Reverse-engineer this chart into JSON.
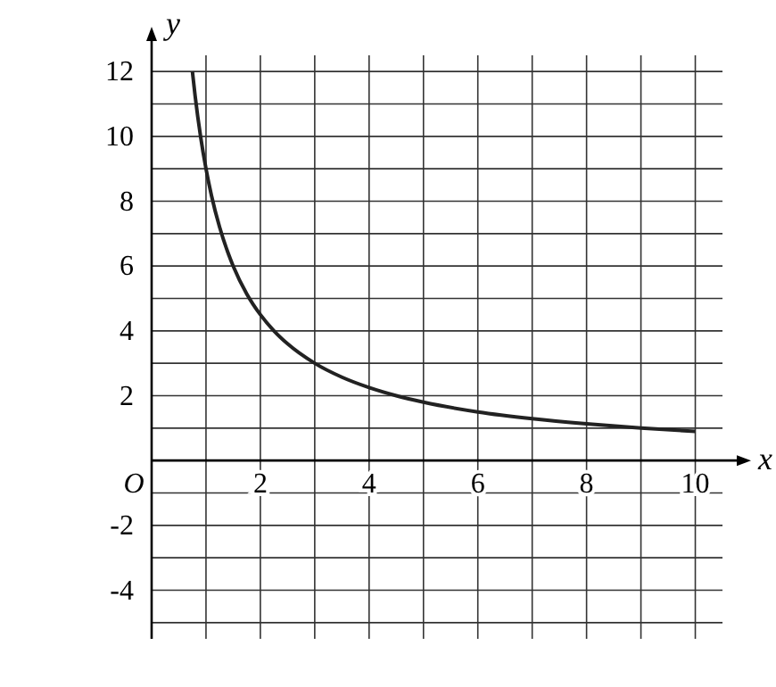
{
  "chart_data": {
    "type": "line",
    "xlabel": "x",
    "ylabel": "y",
    "x": [
      0.75,
      0.8,
      0.9,
      1,
      1.1,
      1.25,
      1.4,
      1.5,
      1.75,
      2,
      2.25,
      2.5,
      3,
      3.5,
      4,
      4.5,
      5,
      6,
      7,
      8,
      9,
      10
    ],
    "series": [
      {
        "color": "#222222",
        "values": [
          12,
          11.25,
          10,
          9,
          8.18,
          7.2,
          6.43,
          6,
          5.14,
          4.5,
          4,
          3.6,
          3,
          2.57,
          2.25,
          2,
          1.8,
          1.5,
          1.29,
          1.13,
          1,
          0.9
        ]
      }
    ],
    "xlim": [
      0,
      10.5
    ],
    "ylim": [
      -5.5,
      12.5
    ],
    "xticks": [
      {
        "value": 0,
        "label": "O"
      },
      {
        "value": 1,
        "label": null
      },
      2,
      {
        "value": 3,
        "label": null
      },
      4,
      {
        "value": 5,
        "label": null
      },
      6,
      {
        "value": 7,
        "label": null
      },
      8,
      {
        "value": 9,
        "label": null
      },
      10
    ],
    "yticks": [
      {
        "value": -5,
        "label": null
      },
      -4,
      {
        "value": -3,
        "label": null
      },
      -2,
      {
        "value": -1,
        "label": null
      },
      {
        "value": 1,
        "label": null
      },
      2,
      {
        "value": 3,
        "label": null
      },
      4,
      {
        "value": 5,
        "label": null
      },
      6,
      {
        "value": 7,
        "label": null
      },
      8,
      {
        "value": 9,
        "label": null
      },
      10,
      {
        "value": 11,
        "label": null
      },
      12
    ],
    "grid": true,
    "marker": "none",
    "line_style": "solid"
  }
}
